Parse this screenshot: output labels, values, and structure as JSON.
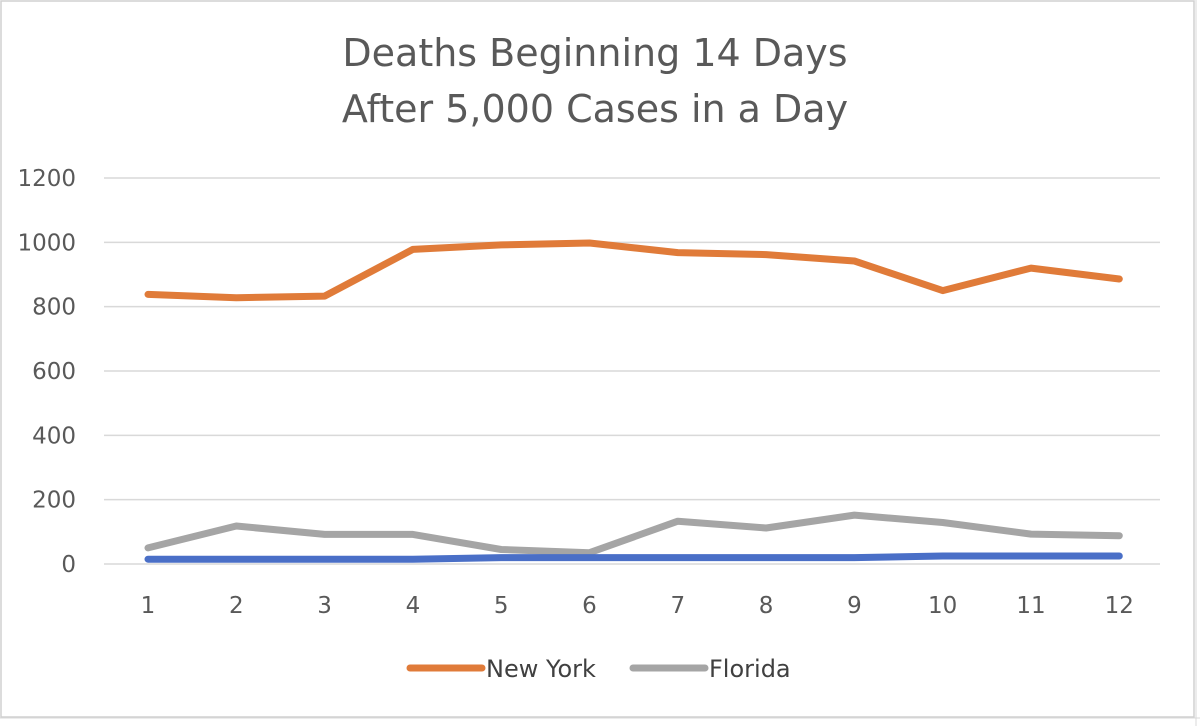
{
  "chart_data": {
    "type": "line",
    "title_lines": [
      "Deaths Beginning 14 Days",
      "After 5,000 Cases in a Day"
    ],
    "x": [
      1,
      2,
      3,
      4,
      5,
      6,
      7,
      8,
      9,
      10,
      11,
      12
    ],
    "ylim": [
      0,
      1200
    ],
    "yticks": [
      0,
      200,
      400,
      600,
      800,
      1000,
      1200
    ],
    "grid": true,
    "legend_position": "bottom",
    "series": [
      {
        "name": "New York",
        "color": "#e07b39",
        "in_legend": true,
        "values": [
          838,
          828,
          833,
          978,
          992,
          998,
          968,
          962,
          942,
          850,
          920,
          886
        ]
      },
      {
        "name": "Florida",
        "color": "#a5a5a5",
        "in_legend": true,
        "values": [
          50,
          118,
          92,
          92,
          45,
          35,
          133,
          112,
          152,
          129,
          93,
          88
        ]
      },
      {
        "name": "",
        "color": "#4a6fc7",
        "in_legend": false,
        "values": [
          15,
          15,
          15,
          15,
          20,
          20,
          20,
          20,
          20,
          25,
          25,
          25
        ]
      }
    ]
  }
}
